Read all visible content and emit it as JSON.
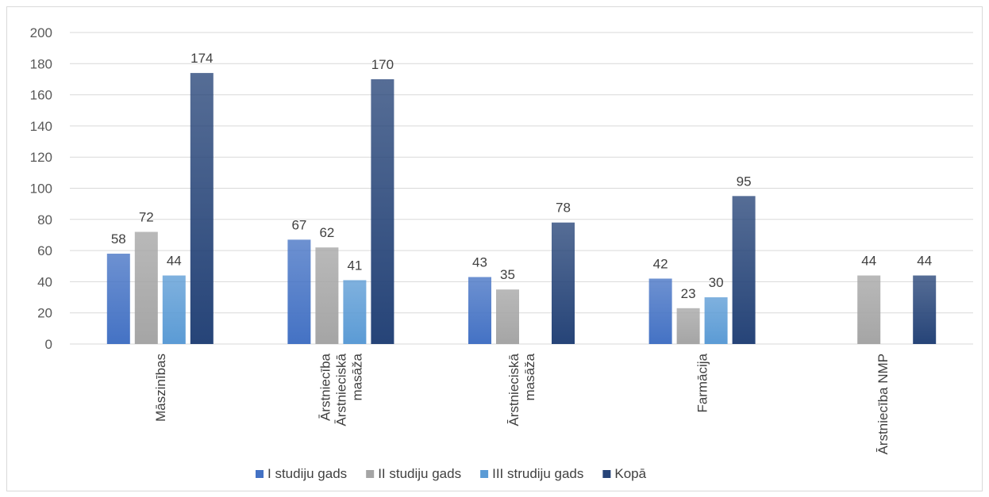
{
  "chart_data": {
    "type": "bar",
    "title": "",
    "xlabel": "",
    "ylabel": "",
    "ylim": [
      0,
      200
    ],
    "yticks": [
      0,
      20,
      40,
      60,
      80,
      100,
      120,
      140,
      160,
      180,
      200
    ],
    "grid": true,
    "legend_position": "bottom",
    "categories": [
      [
        "Māszinības"
      ],
      [
        "Ārstniecība",
        "Ārstnieciskā",
        "masāža"
      ],
      [
        "Ārstnieciskā",
        "masāža"
      ],
      [
        "Farmācija"
      ],
      [
        "Ārstniecība NMP"
      ]
    ],
    "series": [
      {
        "name": "I studiju gads",
        "color": "#4472c4",
        "values": [
          58,
          67,
          43,
          42,
          null
        ]
      },
      {
        "name": "II studiju gads",
        "color": "#a5a5a5",
        "values": [
          72,
          62,
          35,
          23,
          44
        ]
      },
      {
        "name": "III strudiju gads",
        "color": "#5b9bd5",
        "values": [
          44,
          41,
          null,
          30,
          null
        ]
      },
      {
        "name": "Kopā",
        "color": "#264478",
        "values": [
          174,
          170,
          78,
          95,
          44
        ]
      }
    ]
  }
}
